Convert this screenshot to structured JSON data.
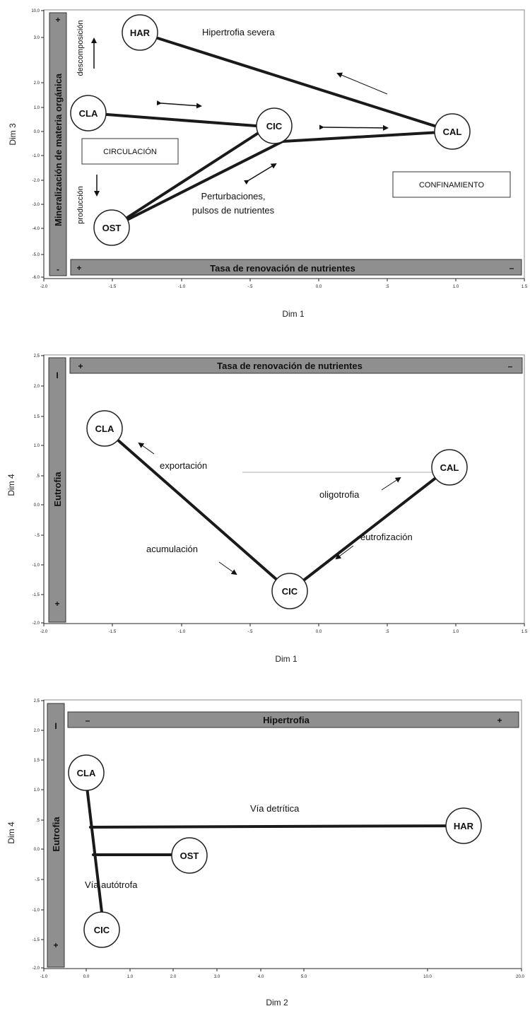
{
  "panel1": {
    "ylabel": "Dim 3",
    "xlabel": "Dim 1",
    "yticks": [
      "10.0",
      "3.0",
      "2.0",
      "1.0",
      "0.0",
      "-1.0",
      "-2.0",
      "-3.0",
      "-4.0",
      "-5.0",
      "-6.0"
    ],
    "xticks": [
      "-2.0",
      "-1.5",
      "-1.0",
      "-.5",
      "0.0",
      ".5",
      "1.0",
      "1.5"
    ],
    "vbar": {
      "label": "Mineralización  de materia orgánica",
      "top_sign": "+",
      "bottom_sign": "-"
    },
    "hbar": {
      "label": "Tasa de renovación de nutrientes",
      "left_sign": "+",
      "right_sign": "–"
    },
    "side_top": "descomposición",
    "side_bottom": "producción",
    "nodes": {
      "har": "HAR",
      "cla": "CLA",
      "cic": "CIC",
      "cal": "CAL",
      "ost": "OST"
    },
    "annotations": {
      "hipertrofia": "Hipertrofia severa",
      "perturb1": "Perturbaciones,",
      "perturb2": "pulsos de nutrientes",
      "circulacion": "CIRCULACIÓN",
      "confinamiento": "CONFINAMIENTO"
    }
  },
  "panel2": {
    "ylabel": "Dim 4",
    "xlabel": "Dim 1",
    "yticks": [
      "2.5",
      "2.0",
      "1.5",
      "1.0",
      ".5",
      "0.0",
      "-.5",
      "-1.0",
      "-1.5",
      "-2.0"
    ],
    "xticks": [
      "-2.0",
      "-1.5",
      "-1.0",
      "-.5",
      "0.0",
      ".5",
      "1.0",
      "1.5"
    ],
    "vbar": {
      "label": "Eutrofia",
      "top_sign": "I",
      "bottom_sign": "+"
    },
    "hbar": {
      "label": "Tasa de renovación de nutrientes",
      "left_sign": "+",
      "right_sign": "–"
    },
    "nodes": {
      "cla": "CLA",
      "cic": "CIC",
      "cal": "CAL"
    },
    "annotations": {
      "exportacion": "exportación",
      "acumulacion": "acumulación",
      "oligotrofia": "oligotrofia",
      "eutrofizacion": "eutrofización"
    }
  },
  "panel3": {
    "ylabel": "Dim 4",
    "xlabel": "Dim 2",
    "yticks": [
      "2.5",
      "2.0",
      "1.5",
      "1.0",
      ".5",
      "0.0",
      "-.5",
      "-1.0",
      "-1.5",
      "-2.0"
    ],
    "xticks": [
      "-1.0",
      "0.0",
      "1.0",
      "2.0",
      "3.0",
      "4.0",
      "5.0",
      "10.0",
      "20.0"
    ],
    "vbar": {
      "label": "Eutrofia",
      "top_sign": "I",
      "bottom_sign": "+"
    },
    "hbar": {
      "label": "Hipertrofia",
      "left_sign": "–",
      "right_sign": "+"
    },
    "nodes": {
      "cla": "CLA",
      "har": "HAR",
      "ost": "OST",
      "cic": "CIC"
    },
    "annotations": {
      "detritica": "Vía detrítica",
      "autotrofa": "Vía autótrofa"
    }
  }
}
